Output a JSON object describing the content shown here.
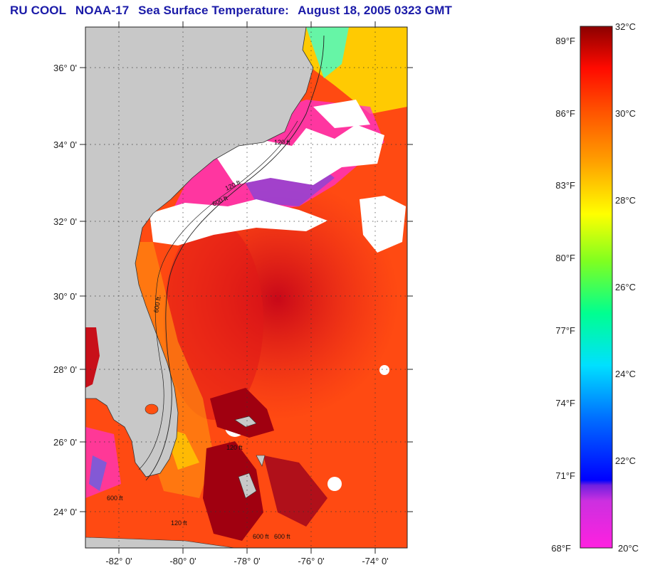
{
  "title": {
    "program": "RU COOL",
    "satellite": "NOAA-17",
    "product": "Sea Surface Temperature:",
    "datetime": "August 18, 2005 0323 GMT"
  },
  "map": {
    "lat_labels": [
      "36° 0'",
      "34° 0'",
      "32° 0'",
      "30° 0'",
      "28° 0'",
      "26° 0'",
      "24° 0'"
    ],
    "lon_labels": [
      "-82° 0'",
      "-80° 0'",
      "-78° 0'",
      "-76° 0'",
      "-74° 0'"
    ],
    "isobath_labels": [
      "120 ft",
      "600 ft",
      "120 ft",
      "600 ft",
      "120 ft",
      "600 ft",
      "600 ft",
      "120 ft",
      "600 ft"
    ],
    "colors": {
      "land": "#c8c8c8",
      "cloud": "#ffffff",
      "warm_ocean": "#ff3a10",
      "hot_ocean": "#d8101a",
      "cool_ocean": "#ffd000"
    }
  },
  "colorbar": {
    "fahrenheit": [
      "89°F",
      "86°F",
      "83°F",
      "80°F",
      "77°F",
      "74°F",
      "71°F",
      "68°F"
    ],
    "celsius": [
      "32°C",
      "30°C",
      "28°C",
      "26°C",
      "24°C",
      "22°C",
      "20°C"
    ],
    "range_c": [
      20,
      32
    ],
    "stops": [
      "#ff20e0",
      "#9a30e0",
      "#0000ff",
      "#0080ff",
      "#00ffff",
      "#00ff80",
      "#a0ff00",
      "#ffff00",
      "#ffa000",
      "#ff5000",
      "#ff0000",
      "#8b0000"
    ]
  }
}
